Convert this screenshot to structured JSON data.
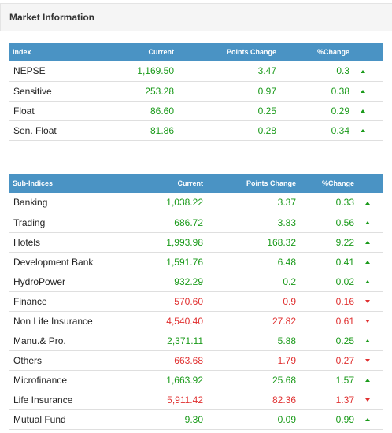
{
  "panel": {
    "title": "Market Information"
  },
  "colors": {
    "header_bg": "#4a93c4",
    "up": "#1a9a1a",
    "down": "#e03030"
  },
  "index_table": {
    "headers": [
      "Index",
      "Current",
      "Points Change",
      "%Change"
    ],
    "rows": [
      {
        "name": "NEPSE",
        "current": "1,169.50",
        "points": "3.47",
        "pct": "0.3",
        "dir": "up"
      },
      {
        "name": "Sensitive",
        "current": "253.28",
        "points": "0.97",
        "pct": "0.38",
        "dir": "up"
      },
      {
        "name": "Float",
        "current": "86.60",
        "points": "0.25",
        "pct": "0.29",
        "dir": "up"
      },
      {
        "name": "Sen. Float",
        "current": "81.86",
        "points": "0.28",
        "pct": "0.34",
        "dir": "up"
      }
    ]
  },
  "subindex_table": {
    "headers": [
      "Sub-Indices",
      "Current",
      "Points Change",
      "%Change"
    ],
    "rows": [
      {
        "name": "Banking",
        "current": "1,038.22",
        "points": "3.37",
        "pct": "0.33",
        "dir": "up"
      },
      {
        "name": "Trading",
        "current": "686.72",
        "points": "3.83",
        "pct": "0.56",
        "dir": "up"
      },
      {
        "name": "Hotels",
        "current": "1,993.98",
        "points": "168.32",
        "pct": "9.22",
        "dir": "up"
      },
      {
        "name": "Development Bank",
        "current": "1,591.76",
        "points": "6.48",
        "pct": "0.41",
        "dir": "up"
      },
      {
        "name": "HydroPower",
        "current": "932.29",
        "points": "0.2",
        "pct": "0.02",
        "dir": "up"
      },
      {
        "name": "Finance",
        "current": "570.60",
        "points": "0.9",
        "pct": "0.16",
        "dir": "down"
      },
      {
        "name": "Non Life Insurance",
        "current": "4,540.40",
        "points": "27.82",
        "pct": "0.61",
        "dir": "down"
      },
      {
        "name": "Manu.& Pro.",
        "current": "2,371.11",
        "points": "5.88",
        "pct": "0.25",
        "dir": "up"
      },
      {
        "name": "Others",
        "current": "663.68",
        "points": "1.79",
        "pct": "0.27",
        "dir": "down"
      },
      {
        "name": "Microfinance",
        "current": "1,663.92",
        "points": "25.68",
        "pct": "1.57",
        "dir": "up"
      },
      {
        "name": "Life Insurance",
        "current": "5,911.42",
        "points": "82.36",
        "pct": "1.37",
        "dir": "down"
      },
      {
        "name": "Mutual Fund",
        "current": "9.30",
        "points": "0.09",
        "pct": "0.99",
        "dir": "up"
      }
    ]
  }
}
